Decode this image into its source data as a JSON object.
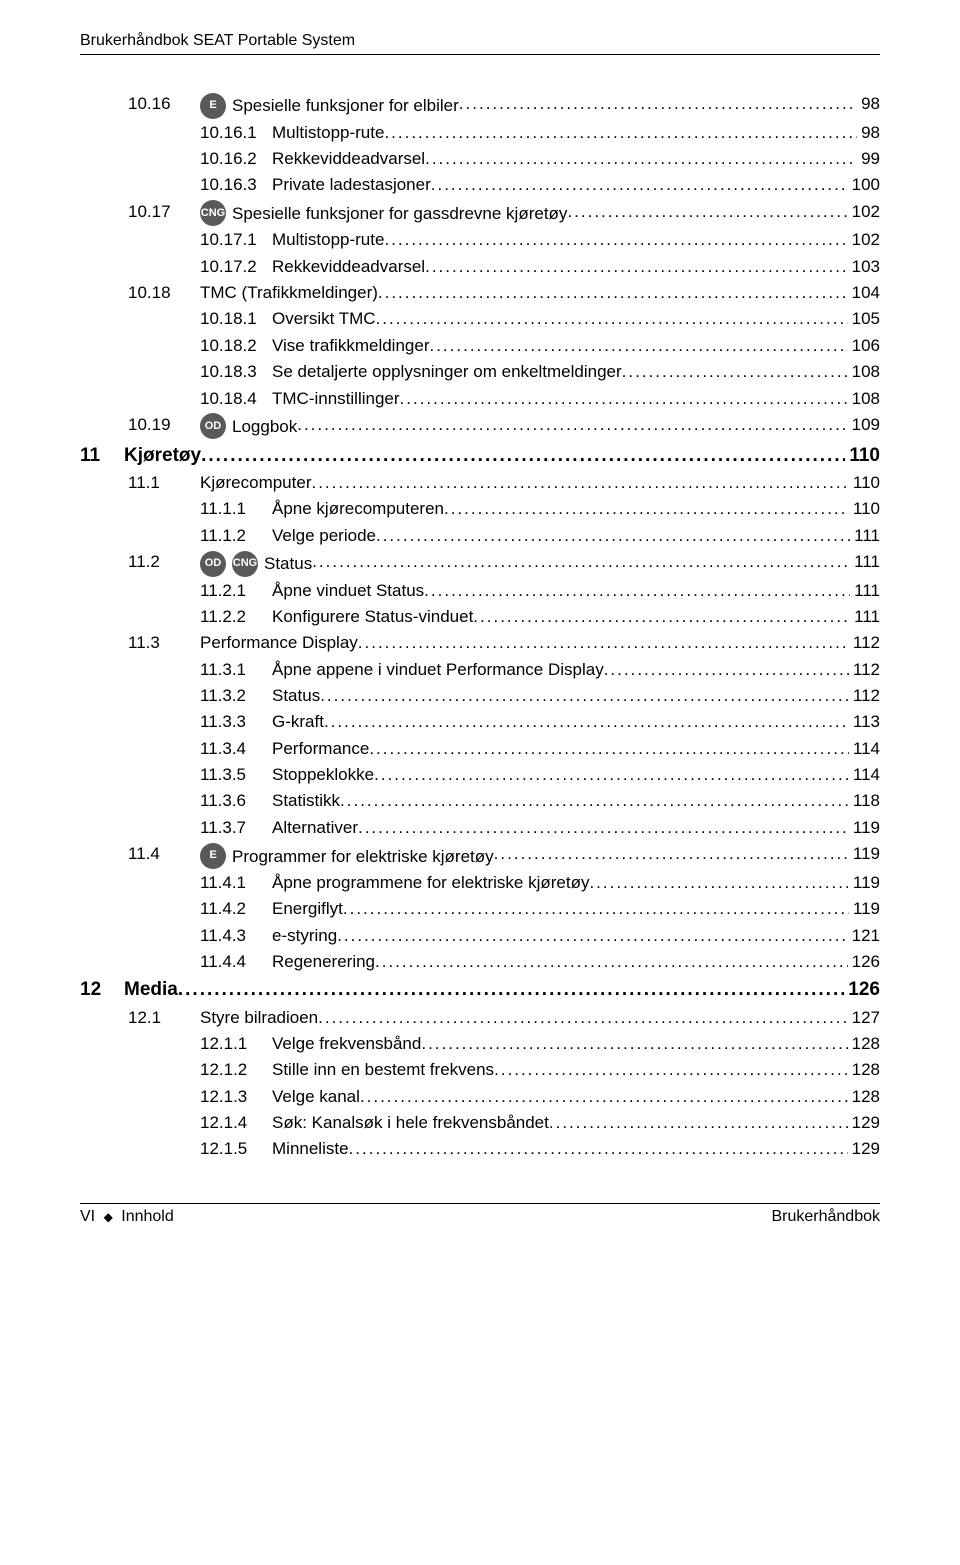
{
  "header": "Brukerhåndbok SEAT Portable System",
  "footer_left_prefix": "VI",
  "footer_left_label": "Innhold",
  "footer_right": "Brukerhåndbok",
  "colors": {
    "badge_e": "#595959",
    "badge_cng": "#595959",
    "badge_od": "#595959",
    "text": "#000000",
    "background": "#ffffff"
  },
  "entries": [
    {
      "level": 2,
      "num": "10.16",
      "title": "Spesielle funksjoner for elbiler",
      "page": "98",
      "badges": [
        "E"
      ]
    },
    {
      "level": 3,
      "num": "10.16.1",
      "title": "Multistopp-rute",
      "page": "98"
    },
    {
      "level": 3,
      "num": "10.16.2",
      "title": "Rekkeviddeadvarsel",
      "page": "99"
    },
    {
      "level": 3,
      "num": "10.16.3",
      "title": "Private ladestasjoner",
      "page": "100"
    },
    {
      "level": 2,
      "num": "10.17",
      "title": "Spesielle funksjoner for gassdrevne kjøretøy",
      "page": "102",
      "badges": [
        "CNG"
      ]
    },
    {
      "level": 3,
      "num": "10.17.1",
      "title": "Multistopp-rute",
      "page": "102"
    },
    {
      "level": 3,
      "num": "10.17.2",
      "title": "Rekkeviddeadvarsel",
      "page": "103"
    },
    {
      "level": 2,
      "num": "10.18",
      "title": "TMC (Trafikkmeldinger)",
      "page": "104"
    },
    {
      "level": 3,
      "num": "10.18.1",
      "title": "Oversikt TMC",
      "page": "105"
    },
    {
      "level": 3,
      "num": "10.18.2",
      "title": "Vise trafikkmeldinger",
      "page": "106"
    },
    {
      "level": 3,
      "num": "10.18.3",
      "title": "Se detaljerte opplysninger om enkeltmeldinger",
      "page": "108"
    },
    {
      "level": 3,
      "num": "10.18.4",
      "title": "TMC-innstillinger",
      "page": "108"
    },
    {
      "level": 2,
      "num": "10.19",
      "title": "Loggbok",
      "page": "109",
      "badges": [
        "OD"
      ]
    },
    {
      "level": 1,
      "num": "11",
      "title": "Kjøretøy",
      "page": "110"
    },
    {
      "level": 2,
      "num": "11.1",
      "title": "Kjørecomputer",
      "page": "110"
    },
    {
      "level": 3,
      "num": "11.1.1",
      "title": "Åpne kjørecomputeren",
      "page": "110"
    },
    {
      "level": 3,
      "num": "11.1.2",
      "title": "Velge periode",
      "page": "111"
    },
    {
      "level": 2,
      "num": "11.2",
      "title": "Status",
      "page": "111",
      "badges": [
        "OD",
        "CNG"
      ]
    },
    {
      "level": 3,
      "num": "11.2.1",
      "title": "Åpne vinduet Status",
      "page": "111"
    },
    {
      "level": 3,
      "num": "11.2.2",
      "title": "Konfigurere Status-vinduet",
      "page": "111"
    },
    {
      "level": 2,
      "num": "11.3",
      "title": "Performance Display",
      "page": "112"
    },
    {
      "level": 3,
      "num": "11.3.1",
      "title": "Åpne appene i vinduet Performance Display",
      "page": "112"
    },
    {
      "level": 3,
      "num": "11.3.2",
      "title": "Status",
      "page": "112"
    },
    {
      "level": 3,
      "num": "11.3.3",
      "title": "G-kraft",
      "page": "113"
    },
    {
      "level": 3,
      "num": "11.3.4",
      "title": "Performance",
      "page": "114"
    },
    {
      "level": 3,
      "num": "11.3.5",
      "title": "Stoppeklokke",
      "page": "114"
    },
    {
      "level": 3,
      "num": "11.3.6",
      "title": "Statistikk",
      "page": "118"
    },
    {
      "level": 3,
      "num": "11.3.7",
      "title": "Alternativer",
      "page": "119"
    },
    {
      "level": 2,
      "num": "11.4",
      "title": "Programmer for elektriske kjøretøy",
      "page": "119",
      "badges": [
        "E"
      ]
    },
    {
      "level": 3,
      "num": "11.4.1",
      "title": "Åpne programmene for elektriske kjøretøy",
      "page": "119"
    },
    {
      "level": 3,
      "num": "11.4.2",
      "title": "Energiflyt",
      "page": "119"
    },
    {
      "level": 3,
      "num": "11.4.3",
      "title": "e-styring",
      "page": "121"
    },
    {
      "level": 3,
      "num": "11.4.4",
      "title": "Regenerering",
      "page": "126"
    },
    {
      "level": 1,
      "num": "12",
      "title": "Media",
      "page": "126"
    },
    {
      "level": 2,
      "num": "12.1",
      "title": "Styre bilradioen",
      "page": "127"
    },
    {
      "level": 3,
      "num": "12.1.1",
      "title": "Velge frekvensbånd",
      "page": "128"
    },
    {
      "level": 3,
      "num": "12.1.2",
      "title": "Stille inn en bestemt frekvens",
      "page": "128"
    },
    {
      "level": 3,
      "num": "12.1.3",
      "title": "Velge kanal",
      "page": "128"
    },
    {
      "level": 3,
      "num": "12.1.4",
      "title": "Søk: Kanalsøk i hele frekvensbåndet",
      "page": "129"
    },
    {
      "level": 3,
      "num": "12.1.5",
      "title": "Minneliste",
      "page": "129"
    }
  ]
}
